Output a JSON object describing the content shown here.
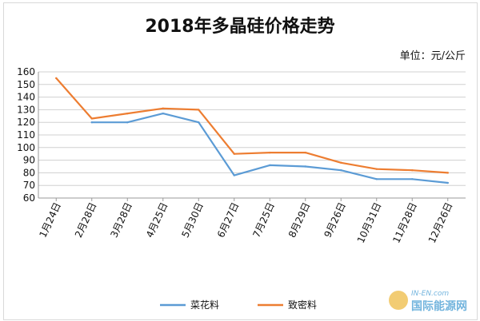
{
  "chart_data": {
    "type": "line",
    "title": "2018年多晶硅价格走势",
    "unit_label": "单位：元/公斤",
    "categories": [
      "1月24日",
      "2月28日",
      "3月28日",
      "4月25日",
      "5月30日",
      "6月27日",
      "7月25日",
      "8月29日",
      "9月26日",
      "10月31日",
      "11月28日",
      "12月26日"
    ],
    "ylim": [
      60,
      160
    ],
    "yticks": [
      60,
      70,
      80,
      90,
      100,
      110,
      120,
      130,
      140,
      150,
      160
    ],
    "grid": true,
    "legend_position": "bottom",
    "series": [
      {
        "name": "菜花料",
        "color": "#5b9bd5",
        "values": [
          null,
          120,
          120,
          127,
          120,
          78,
          86,
          85,
          82,
          75,
          75,
          72
        ]
      },
      {
        "name": "致密料",
        "color": "#ed7d31",
        "values": [
          155,
          123,
          127,
          131,
          130,
          95,
          96,
          96,
          88,
          83,
          82,
          80
        ]
      }
    ]
  },
  "watermark": {
    "brand": "IN-EN.com",
    "text": "国际能源网"
  }
}
